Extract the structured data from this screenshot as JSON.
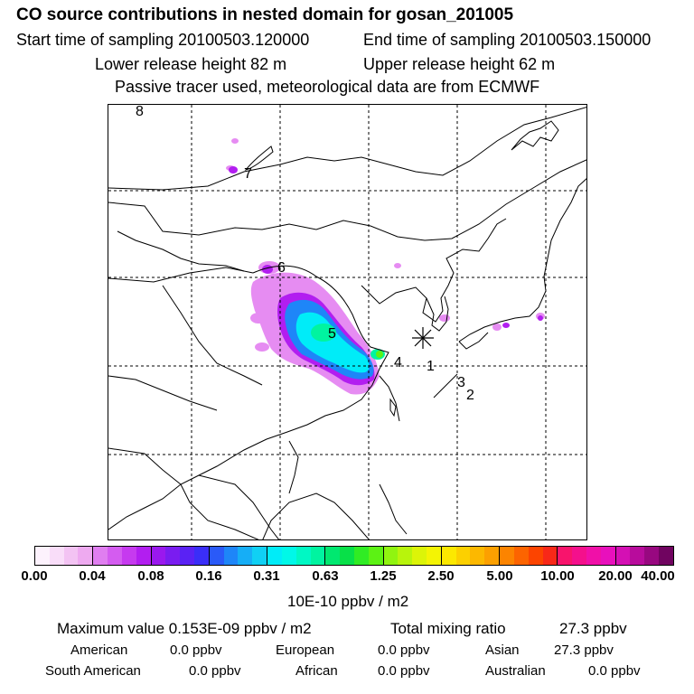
{
  "header": {
    "title": "CO  source contributions in nested domain for gosan_201005",
    "start_label": "Start time of sampling 20100503.120000",
    "end_label": "End time of sampling 20100503.150000",
    "lower_label": "Lower release height   82 m",
    "upper_label": "Upper release height   62 m",
    "note": "Passive tracer used, meteorological data are from ECMWF"
  },
  "map": {
    "region_labels": [
      "1",
      "2",
      "3",
      "4",
      "5",
      "6",
      "7",
      "8"
    ],
    "receptor_marker": "receptor-star"
  },
  "legend": {
    "ticks": [
      "0.00",
      "0.04",
      "0.08",
      "0.16",
      "0.31",
      "0.63",
      "1.25",
      "2.50",
      "5.00",
      "10.00",
      "20.00",
      "40.00"
    ],
    "unit": "10E-10 ppbv / m2",
    "segments": [
      [
        "#fdf2fd",
        "#f9ddf9",
        "#f3c3f3",
        "#eeaaf0"
      ],
      [
        "#e07ef0",
        "#d45cf0",
        "#c63aef",
        "#b21ef0"
      ],
      [
        "#9a18ee",
        "#7a1cf0",
        "#5a22f4",
        "#3a2ef8"
      ],
      [
        "#2a5af8",
        "#1e86f8",
        "#16aef6",
        "#10d0f4"
      ],
      [
        "#00ecf8",
        "#00f8e8",
        "#00f8c4",
        "#00f4a0"
      ],
      [
        "#00e870",
        "#08e048",
        "#30ec24",
        "#5cf214"
      ],
      [
        "#90f410",
        "#b8f40c",
        "#dcf408",
        "#f4f404"
      ],
      [
        "#fce800",
        "#fcd000",
        "#fcb800",
        "#fca000"
      ],
      [
        "#fc8400",
        "#fc6400",
        "#fc4400",
        "#f82818"
      ],
      [
        "#f8146c",
        "#f4108c",
        "#f010a8",
        "#e810bc"
      ],
      [
        "#d410b4",
        "#b80c9c",
        "#980880",
        "#700460"
      ]
    ]
  },
  "stats": {
    "max_label": "Maximum value  0.153E-09 ppbv / m2",
    "total_label": "Total mixing ratio",
    "total_value": "27.3 ppbv",
    "regions": [
      {
        "name": "American",
        "value": "0.0 ppbv"
      },
      {
        "name": "European",
        "value": "0.0 ppbv"
      },
      {
        "name": "Asian",
        "value": "27.3 ppbv"
      },
      {
        "name": "South American",
        "value": "0.0 ppbv"
      },
      {
        "name": "African",
        "value": "0.0 ppbv"
      },
      {
        "name": "Australian",
        "value": "0.0 ppbv"
      }
    ]
  }
}
